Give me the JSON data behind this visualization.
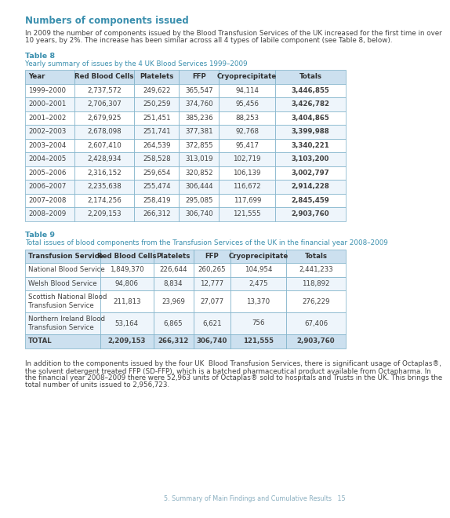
{
  "title": "Numbers of components issued",
  "intro_text1": "In 2009 the number of components issued by the Blood Transfusion Services of the UK increased for the first time in over",
  "intro_text2": "10 years, by 2%. The increase has been similar across all 4 types of labile component (see Table 8, below).",
  "table8_label": "Table 8",
  "table8_subtitle": "Yearly summary of issues by the 4 UK Blood Services 1999–2009",
  "table8_headers": [
    "Year",
    "Red Blood Cells",
    "Platelets",
    "FFP",
    "Cryoprecipitate",
    "Totals"
  ],
  "table8_rows": [
    [
      "1999–2000",
      "2,737,572",
      "249,622",
      "365,547",
      "94,114",
      "3,446,855"
    ],
    [
      "2000–2001",
      "2,706,307",
      "250,259",
      "374,760",
      "95,456",
      "3,426,782"
    ],
    [
      "2001–2002",
      "2,679,925",
      "251,451",
      "385,236",
      "88,253",
      "3,404,865"
    ],
    [
      "2002–2003",
      "2,678,098",
      "251,741",
      "377,381",
      "92,768",
      "3,399,988"
    ],
    [
      "2003–2004",
      "2,607,410",
      "264,539",
      "372,855",
      "95,417",
      "3,340,221"
    ],
    [
      "2004–2005",
      "2,428,934",
      "258,528",
      "313,019",
      "102,719",
      "3,103,200"
    ],
    [
      "2005–2006",
      "2,316,152",
      "259,654",
      "320,852",
      "106,139",
      "3,002,797"
    ],
    [
      "2006–2007",
      "2,235,638",
      "255,474",
      "306,444",
      "116,672",
      "2,914,228"
    ],
    [
      "2007–2008",
      "2,174,256",
      "258,419",
      "295,085",
      "117,699",
      "2,845,459"
    ],
    [
      "2008–2009",
      "2,209,153",
      "266,312",
      "306,740",
      "121,555",
      "2,903,760"
    ]
  ],
  "table9_label": "Table 9",
  "table9_subtitle": "Total issues of blood components from the Transfusion Services of the UK in the financial year 2008–2009",
  "table9_headers": [
    "Transfusion Service",
    "Red Blood Cells",
    "Platelets",
    "FFP",
    "Cryoprecipitate",
    "Totals"
  ],
  "table9_rows": [
    [
      "National Blood Service",
      "1,849,370",
      "226,644",
      "260,265",
      "104,954",
      "2,441,233"
    ],
    [
      "Welsh Blood Service",
      "94,806",
      "8,834",
      "12,777",
      "2,475",
      "118,892"
    ],
    [
      "Scottish National Blood\nTransfusion Service",
      "211,813",
      "23,969",
      "27,077",
      "13,370",
      "276,229"
    ],
    [
      "Northern Ireland Blood\nTransfusion Service",
      "53,164",
      "6,865",
      "6,621",
      "756",
      "67,406"
    ]
  ],
  "table9_total_row": [
    "TOTAL",
    "2,209,153",
    "266,312",
    "306,740",
    "121,555",
    "2,903,760"
  ],
  "footer_line1": "In addition to the components issued by the four UK  Blood Transfusion Services, there is significant usage of Octaplas®,",
  "footer_line2": "the solvent detergent treated FFP (SD-FFP), which is a batched pharmaceutical product available from Octapharma. In",
  "footer_line3": "the financial year 2008–2009 there were 52,963 units of Octaplas® sold to hospitals and Trusts in the UK. This brings the",
  "footer_line4": "total number of units issued to 2,956,723.",
  "page_footer": "5. Summary of Main Findings and Cumulative Results   15",
  "header_bg": "#cce0ef",
  "total_row_bg": "#cce0ef",
  "row_bg_white": "#ffffff",
  "row_bg_blue": "#eef5fb",
  "border_color": "#7aafc8",
  "title_color": "#3a8fae",
  "table_label_color": "#3a8fae",
  "subtitle_color": "#3a8fae",
  "body_text_color": "#404040",
  "header_text_color": "#303030",
  "background_color": "#ffffff",
  "page_footer_color": "#8aafc0"
}
